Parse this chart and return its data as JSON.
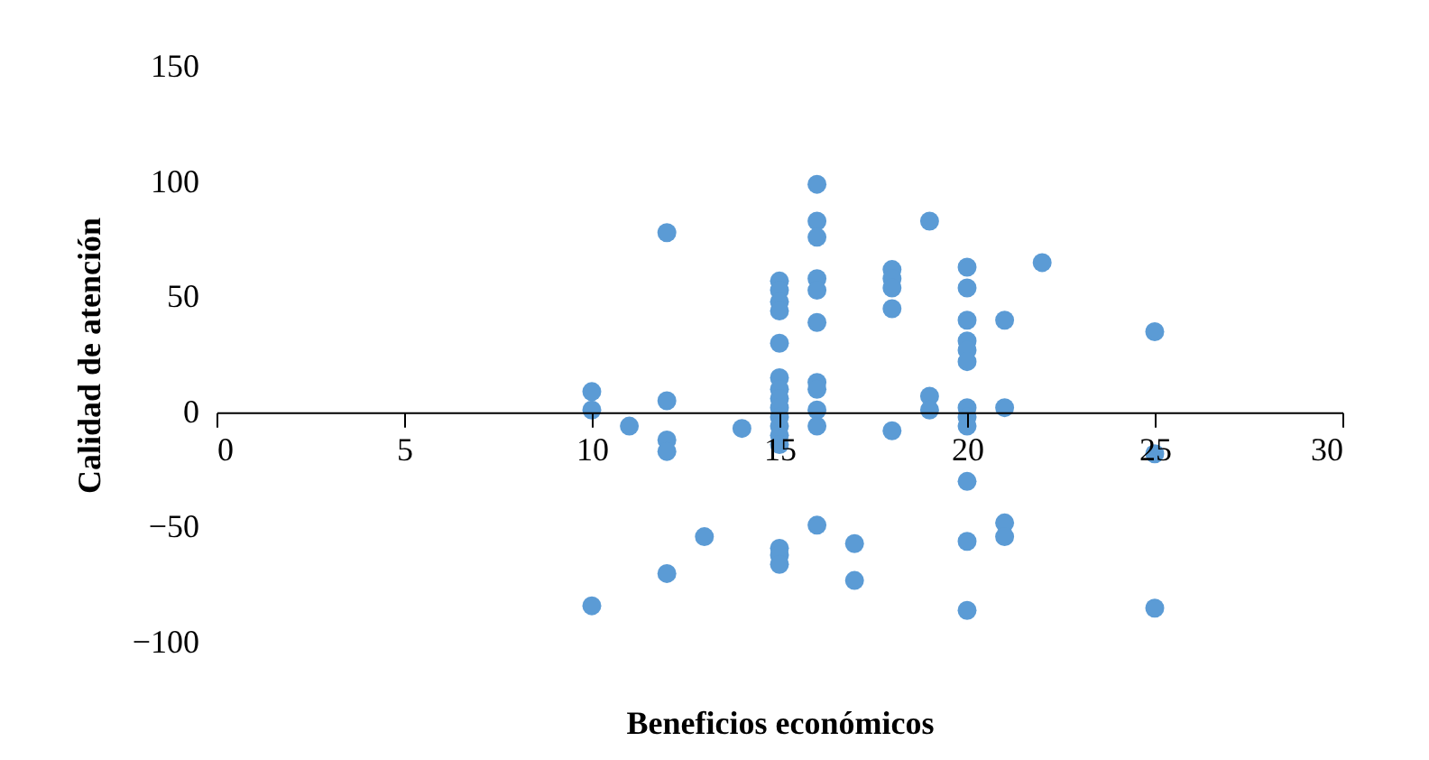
{
  "chart_data": {
    "type": "scatter",
    "xlabel": "Beneficios económicos",
    "ylabel": "Calidad de atención",
    "x": [
      10,
      10,
      10,
      11,
      12,
      12,
      12,
      12,
      12,
      13,
      14,
      15,
      15,
      15,
      15,
      15,
      15,
      15,
      15,
      15,
      15,
      15,
      15,
      15,
      15,
      15,
      15,
      16,
      16,
      16,
      16,
      16,
      16,
      16,
      16,
      16,
      16,
      16,
      17,
      17,
      18,
      18,
      18,
      18,
      18,
      19,
      19,
      19,
      20,
      20,
      20,
      20,
      20,
      20,
      20,
      20,
      20,
      20,
      20,
      20,
      21,
      21,
      21,
      21,
      22,
      25,
      25,
      25
    ],
    "series": [
      {
        "color": "#5b9bd5",
        "values": [
          9,
          1,
          -84,
          -6,
          78,
          5,
          -12,
          -17,
          -70,
          -54,
          -7,
          57,
          53,
          48,
          44,
          30,
          15,
          10,
          6,
          2,
          -2,
          -6,
          -10,
          -14,
          -59,
          -62,
          -66,
          99,
          83,
          76,
          58,
          53,
          39,
          13,
          10,
          1,
          -6,
          -49,
          -57,
          -73,
          62,
          58,
          54,
          45,
          -8,
          83,
          7,
          1,
          63,
          54,
          40,
          31,
          27,
          22,
          2,
          -2,
          -6,
          -30,
          -56,
          -86,
          40,
          2,
          -48,
          -54,
          65,
          35,
          -18,
          -85
        ]
      }
    ],
    "xlim": [
      0,
      30
    ],
    "xticks": [
      0,
      5,
      10,
      15,
      20,
      25,
      30
    ],
    "ylim": [
      -100,
      150
    ],
    "yticks": [
      -100,
      -50,
      0,
      50,
      100,
      150
    ],
    "marker": "circle",
    "grid": false,
    "legend": false
  }
}
